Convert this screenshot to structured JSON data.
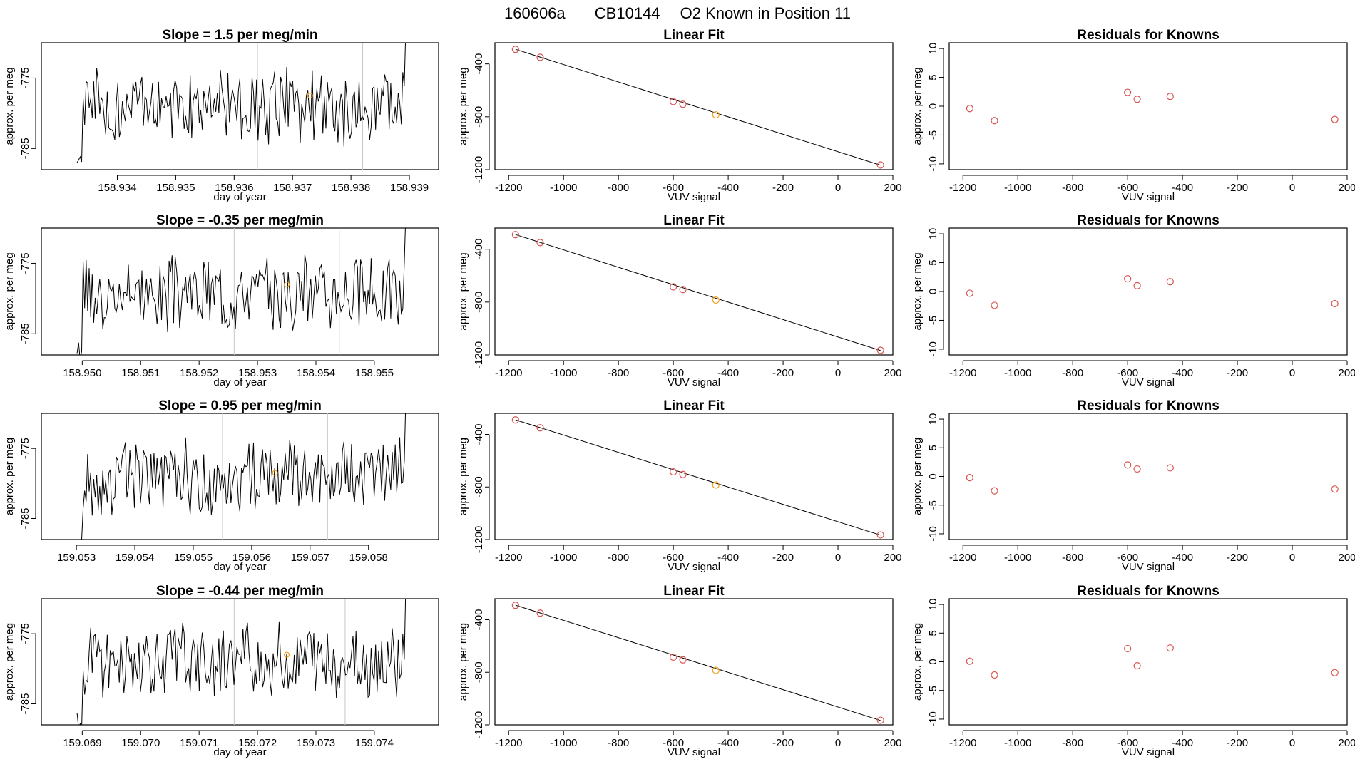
{
  "figure_title": {
    "run_id": "160606a",
    "cylinder": "CB10144",
    "description": "O2 Known in Position  11"
  },
  "colors": {
    "line": "#000000",
    "known_point": "#d9534f",
    "highlight": "#f0a020",
    "marker_line": "#c8c8c8"
  },
  "chart_data": [
    {
      "type": "line",
      "panel": "slope",
      "row": 1,
      "title": "Slope =  1.5  per meg/min",
      "xlabel": "day of year",
      "ylabel": "approx. per meg",
      "xlim": [
        158.9327,
        158.9395
      ],
      "ylim": [
        -788,
        -770
      ],
      "xticks": [
        158.934,
        158.935,
        158.936,
        158.937,
        158.938,
        158.939
      ],
      "xtick_labels": [
        "158.934",
        "158.935",
        "158.936",
        "158.937",
        "158.938",
        "158.939"
      ],
      "yticks": [
        -775,
        -785
      ],
      "ytick_labels": [
        "-775",
        "-785"
      ],
      "marker_lines_x": [
        158.9364,
        158.9382
      ],
      "highlight_point": {
        "x": 158.9373,
        "y": -777.5
      }
    },
    {
      "type": "scatter",
      "panel": "linear_fit",
      "row": 1,
      "title": "Linear Fit",
      "xlabel": "VUV signal",
      "ylabel": "approx. per meg",
      "xlim": [
        -1250,
        200
      ],
      "ylim": [
        -1200,
        -240
      ],
      "xticks": [
        -1200,
        -1000,
        -800,
        -600,
        -400,
        -200,
        0,
        200
      ],
      "xtick_labels": [
        "-1200",
        "-1000",
        "-800",
        "-600",
        "-400",
        "-200",
        "0",
        "200"
      ],
      "yticks": [
        -400,
        -800,
        -1200
      ],
      "ytick_labels": [
        "-400",
        "-800",
        "-1200"
      ],
      "x": [
        -1175,
        -1085,
        -600,
        -565,
        -445,
        155
      ],
      "y": [
        -290,
        -350,
        -685,
        -705,
        -785,
        -1165
      ],
      "highlight_index": 4,
      "fit_line": {
        "x": [
          -1175,
          155
        ],
        "y": [
          -289.5,
          -1166.5
        ]
      }
    },
    {
      "type": "scatter",
      "panel": "residuals",
      "row": 1,
      "title": "Residuals for Knowns",
      "xlabel": "VUV signal",
      "ylabel": "approx. per meg",
      "xlim": [
        -1250,
        200
      ],
      "ylim": [
        -11,
        11
      ],
      "xticks": [
        -1200,
        -1000,
        -800,
        -600,
        -400,
        -200,
        0,
        200
      ],
      "xtick_labels": [
        "-1200",
        "-1000",
        "-800",
        "-600",
        "-400",
        "-200",
        "0",
        "200"
      ],
      "yticks": [
        10,
        5,
        0,
        -5,
        -10
      ],
      "ytick_labels": [
        "10",
        "5",
        "0",
        "-5",
        "-10"
      ],
      "x": [
        -1175,
        -1085,
        -600,
        -565,
        -445,
        155
      ],
      "y": [
        -0.4,
        -2.5,
        2.4,
        1.2,
        1.7,
        -2.3
      ]
    },
    {
      "type": "line",
      "panel": "slope",
      "row": 2,
      "title": "Slope =  -0.35  per meg/min",
      "xlabel": "day of year",
      "ylabel": "approx. per meg",
      "xlim": [
        158.9493,
        158.9561
      ],
      "ylim": [
        -788,
        -770
      ],
      "xticks": [
        158.95,
        158.951,
        158.952,
        158.953,
        158.954,
        158.955
      ],
      "xtick_labels": [
        "158.950",
        "158.951",
        "158.952",
        "158.953",
        "158.954",
        "158.955"
      ],
      "yticks": [
        -775,
        -785
      ],
      "ytick_labels": [
        "-775",
        "-785"
      ],
      "marker_lines_x": [
        158.9526,
        158.9544
      ],
      "highlight_point": {
        "x": 158.9535,
        "y": -778
      }
    },
    {
      "type": "scatter",
      "panel": "linear_fit",
      "row": 2,
      "title": "Linear Fit",
      "xlabel": "VUV signal",
      "ylabel": "approx. per meg",
      "xlim": [
        -1250,
        200
      ],
      "ylim": [
        -1200,
        -240
      ],
      "xticks": [
        -1200,
        -1000,
        -800,
        -600,
        -400,
        -200,
        0,
        200
      ],
      "xtick_labels": [
        "-1200",
        "-1000",
        "-800",
        "-600",
        "-400",
        "-200",
        "0",
        "200"
      ],
      "yticks": [
        -400,
        -800,
        -1200
      ],
      "ytick_labels": [
        "-400",
        "-800",
        "-1200"
      ],
      "x": [
        -1175,
        -1085,
        -600,
        -565,
        -445,
        155
      ],
      "y": [
        -290,
        -350,
        -685,
        -705,
        -785,
        -1165
      ],
      "highlight_index": 4,
      "fit_line": {
        "x": [
          -1175,
          155
        ],
        "y": [
          -289.5,
          -1166.5
        ]
      }
    },
    {
      "type": "scatter",
      "panel": "residuals",
      "row": 2,
      "title": "Residuals for Knowns",
      "xlabel": "VUV signal",
      "ylabel": "approx. per meg",
      "xlim": [
        -1250,
        200
      ],
      "ylim": [
        -11,
        11
      ],
      "xticks": [
        -1200,
        -1000,
        -800,
        -600,
        -400,
        -200,
        0,
        200
      ],
      "xtick_labels": [
        "-1200",
        "-1000",
        "-800",
        "-600",
        "-400",
        "-200",
        "0",
        "200"
      ],
      "yticks": [
        10,
        5,
        0,
        -5,
        -10
      ],
      "ytick_labels": [
        "10",
        "5",
        "0",
        "-5",
        "-10"
      ],
      "x": [
        -1175,
        -1085,
        -600,
        -565,
        -445,
        155
      ],
      "y": [
        -0.3,
        -2.4,
        2.2,
        1.0,
        1.7,
        -2.1
      ]
    },
    {
      "type": "line",
      "panel": "slope",
      "row": 3,
      "title": "Slope =  0.95  per meg/min",
      "xlabel": "day of year",
      "ylabel": "approx. per meg",
      "xlim": [
        159.0524,
        159.0592
      ],
      "ylim": [
        -788,
        -770
      ],
      "xticks": [
        159.053,
        159.054,
        159.055,
        159.056,
        159.057,
        159.058
      ],
      "xtick_labels": [
        "159.053",
        "159.054",
        "159.055",
        "159.056",
        "159.057",
        "159.058"
      ],
      "yticks": [
        -775,
        -785
      ],
      "ytick_labels": [
        "-775",
        "-785"
      ],
      "marker_lines_x": [
        159.0555,
        159.0573
      ],
      "highlight_point": {
        "x": 159.0564,
        "y": -778.5
      }
    },
    {
      "type": "scatter",
      "panel": "linear_fit",
      "row": 3,
      "title": "Linear Fit",
      "xlabel": "VUV signal",
      "ylabel": "approx. per meg",
      "xlim": [
        -1250,
        200
      ],
      "ylim": [
        -1200,
        -240
      ],
      "xticks": [
        -1200,
        -1000,
        -800,
        -600,
        -400,
        -200,
        0,
        200
      ],
      "xtick_labels": [
        "-1200",
        "-1000",
        "-800",
        "-600",
        "-400",
        "-200",
        "0",
        "200"
      ],
      "yticks": [
        -400,
        -800,
        -1200
      ],
      "ytick_labels": [
        "-400",
        "-800",
        "-1200"
      ],
      "x": [
        -1175,
        -1085,
        -600,
        -565,
        -445,
        155
      ],
      "y": [
        -290,
        -350,
        -685,
        -705,
        -785,
        -1165
      ],
      "highlight_index": 4,
      "fit_line": {
        "x": [
          -1175,
          155
        ],
        "y": [
          -289.5,
          -1166.5
        ]
      }
    },
    {
      "type": "scatter",
      "panel": "residuals",
      "row": 3,
      "title": "Residuals for Knowns",
      "xlabel": "VUV signal",
      "ylabel": "approx. per meg",
      "xlim": [
        -1250,
        200
      ],
      "ylim": [
        -11,
        11
      ],
      "xticks": [
        -1200,
        -1000,
        -800,
        -600,
        -400,
        -200,
        0,
        200
      ],
      "xtick_labels": [
        "-1200",
        "-1000",
        "-800",
        "-600",
        "-400",
        "-200",
        "0",
        "200"
      ],
      "yticks": [
        10,
        5,
        0,
        -5,
        -10
      ],
      "ytick_labels": [
        "10",
        "5",
        "0",
        "-5",
        "-10"
      ],
      "x": [
        -1175,
        -1085,
        -600,
        -565,
        -445,
        155
      ],
      "y": [
        -0.2,
        -2.5,
        2.0,
        1.3,
        1.5,
        -2.2
      ]
    },
    {
      "type": "line",
      "panel": "slope",
      "row": 4,
      "title": "Slope =  -0.44  per meg/min",
      "xlabel": "day of year",
      "ylabel": "approx. per meg",
      "xlim": [
        159.0683,
        159.0751
      ],
      "ylim": [
        -788,
        -770
      ],
      "xticks": [
        159.069,
        159.07,
        159.071,
        159.072,
        159.073,
        159.074
      ],
      "xtick_labels": [
        "159.069",
        "159.070",
        "159.071",
        "159.072",
        "159.073",
        "159.074"
      ],
      "yticks": [
        -775,
        -785
      ],
      "ytick_labels": [
        "-775",
        "-785"
      ],
      "marker_lines_x": [
        159.0716,
        159.0735
      ],
      "highlight_point": {
        "x": 159.0725,
        "y": -778
      }
    },
    {
      "type": "scatter",
      "panel": "linear_fit",
      "row": 4,
      "title": "Linear Fit",
      "xlabel": "VUV signal",
      "ylabel": "approx. per meg",
      "xlim": [
        -1250,
        200
      ],
      "ylim": [
        -1200,
        -240
      ],
      "xticks": [
        -1200,
        -1000,
        -800,
        -600,
        -400,
        -200,
        0,
        200
      ],
      "xtick_labels": [
        "-1200",
        "-1000",
        "-800",
        "-600",
        "-400",
        "-200",
        "0",
        "200"
      ],
      "yticks": [
        -400,
        -800,
        -1200
      ],
      "ytick_labels": [
        "-400",
        "-800",
        "-1200"
      ],
      "x": [
        -1175,
        -1085,
        -600,
        -565,
        -445,
        155
      ],
      "y": [
        -290,
        -350,
        -685,
        -705,
        -785,
        -1165
      ],
      "highlight_index": 4,
      "fit_line": {
        "x": [
          -1175,
          155
        ],
        "y": [
          -289.5,
          -1166.5
        ]
      }
    },
    {
      "type": "scatter",
      "panel": "residuals",
      "row": 4,
      "title": "Residuals for Knowns",
      "xlabel": "VUV signal",
      "ylabel": "approx. per meg",
      "xlim": [
        -1250,
        200
      ],
      "ylim": [
        -11,
        11
      ],
      "xticks": [
        -1200,
        -1000,
        -800,
        -600,
        -400,
        -200,
        0,
        200
      ],
      "xtick_labels": [
        "-1200",
        "-1000",
        "-800",
        "-600",
        "-400",
        "-200",
        "0",
        "200"
      ],
      "yticks": [
        10,
        5,
        0,
        -5,
        -10
      ],
      "ytick_labels": [
        "10",
        "5",
        "0",
        "-5",
        "-10"
      ],
      "x": [
        -1175,
        -1085,
        -600,
        -565,
        -445,
        155
      ],
      "y": [
        0.1,
        -2.3,
        2.3,
        -0.7,
        2.4,
        -1.9
      ]
    }
  ]
}
